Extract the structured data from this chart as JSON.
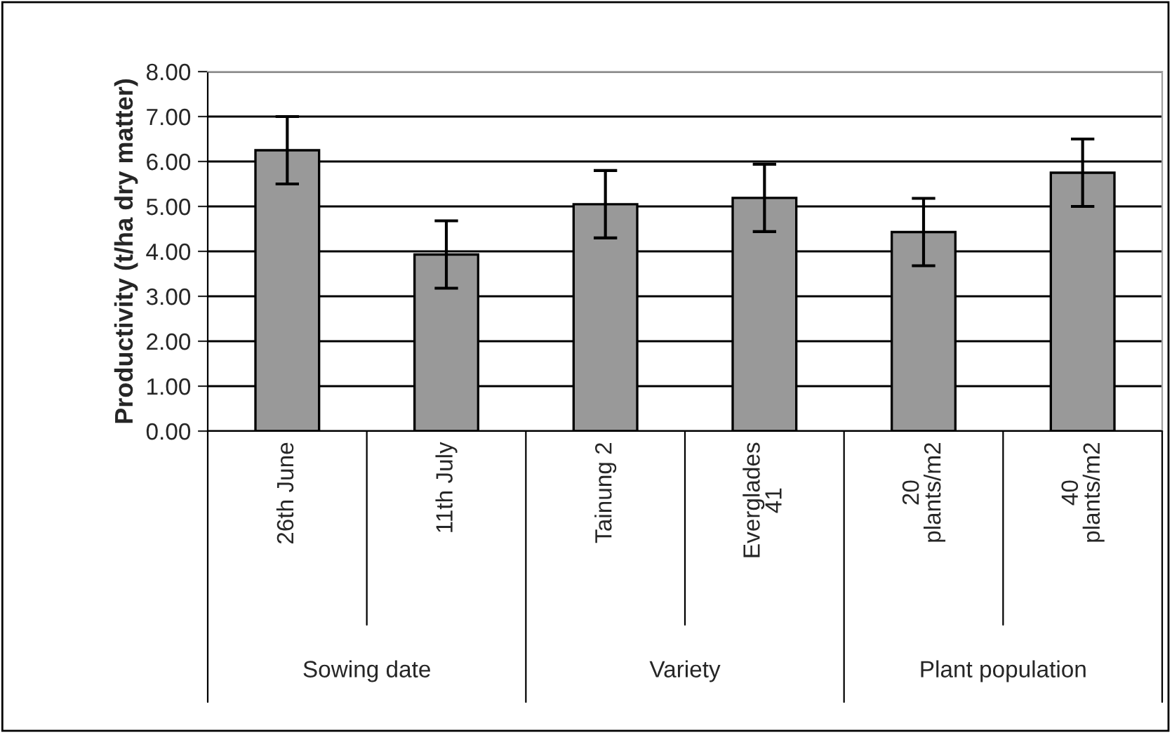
{
  "chart_data": {
    "type": "bar",
    "ylabel": "Productivity (t/ha dry matter)",
    "categories": [
      "26th June",
      "11th July",
      "Tainung 2",
      "Everglades\n41",
      "20\nplants/m2",
      "40\nplants/m2"
    ],
    "values": [
      6.25,
      3.93,
      5.05,
      5.19,
      4.43,
      5.75
    ],
    "errors": [
      0.75,
      0.75,
      0.75,
      0.75,
      0.75,
      0.75
    ],
    "color": "#999999",
    "annotations": [
      "Sowing date",
      "Variety",
      "Plant population"
    ],
    "ylim": [
      0,
      8
    ],
    "yticks": [
      {
        "value": 0,
        "label": "0.00"
      },
      {
        "value": 1,
        "label": "1.00"
      },
      {
        "value": 2,
        "label": "2.00"
      },
      {
        "value": 3,
        "label": "3.00"
      },
      {
        "value": 4,
        "label": "4.00"
      },
      {
        "value": 5,
        "label": "5.00"
      },
      {
        "value": 6,
        "label": "6.00"
      },
      {
        "value": 7,
        "label": "7.00"
      },
      {
        "value": 8,
        "label": "8.00"
      }
    ],
    "grid": "y",
    "legend": false
  }
}
